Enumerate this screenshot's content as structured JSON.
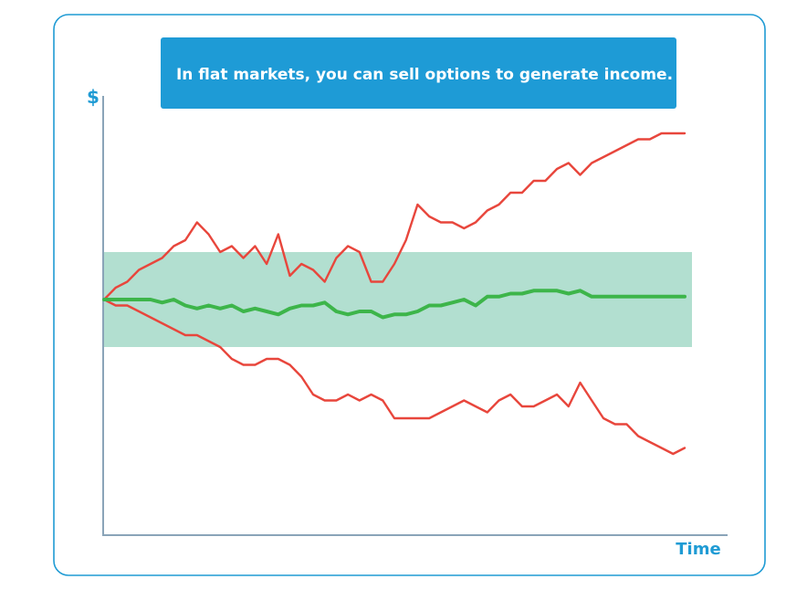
{
  "banner": {
    "text": "In flat markets, you can sell options to generate income."
  },
  "colors": {
    "frame": "#1f9bd4",
    "banner": "#1e9bd6",
    "band": "#b2dfd0",
    "up_line": "#e8463c",
    "down_line": "#e8463c",
    "flat_line": "#3db54a",
    "axis": "#8aa4b8"
  },
  "chart_data": {
    "type": "line",
    "ylabel": "$",
    "xlabel": "Time",
    "xlim": [
      0,
      100
    ],
    "ylim": [
      -40,
      40
    ],
    "band": [
      -8,
      8
    ],
    "grid": false,
    "series": [
      {
        "key": "up",
        "color": "#e8463c",
        "x": [
          0,
          2,
          4,
          6,
          8,
          10,
          12,
          14,
          16,
          18,
          20,
          22,
          24,
          26,
          28,
          30,
          32,
          34,
          36,
          38,
          40,
          42,
          44,
          46,
          48,
          50,
          52,
          54,
          56,
          58,
          60,
          62,
          64,
          66,
          68,
          70,
          72,
          74,
          76,
          78,
          80,
          82,
          84,
          86,
          88,
          90,
          92,
          94,
          96,
          98,
          100
        ],
        "y": [
          0,
          2,
          3,
          5,
          6,
          7,
          9,
          10,
          13,
          11,
          8,
          9,
          7,
          9,
          6,
          11,
          4,
          6,
          5,
          3,
          7,
          9,
          8,
          3,
          3,
          6,
          10,
          16,
          14,
          13,
          13,
          12,
          13,
          15,
          16,
          18,
          18,
          20,
          20,
          22,
          23,
          21,
          23,
          24,
          25,
          26,
          27,
          27,
          28,
          28,
          28
        ]
      },
      {
        "key": "down",
        "color": "#e8463c",
        "x": [
          0,
          2,
          4,
          6,
          8,
          10,
          12,
          14,
          16,
          18,
          20,
          22,
          24,
          26,
          28,
          30,
          32,
          34,
          36,
          38,
          40,
          42,
          44,
          46,
          48,
          50,
          52,
          54,
          56,
          58,
          60,
          62,
          64,
          66,
          68,
          70,
          72,
          74,
          76,
          78,
          80,
          82,
          84,
          86,
          88,
          90,
          92,
          94,
          96,
          98,
          100
        ],
        "y": [
          0,
          -1,
          -1,
          -2,
          -3,
          -4,
          -5,
          -6,
          -6,
          -7,
          -8,
          -10,
          -11,
          -11,
          -10,
          -10,
          -11,
          -13,
          -16,
          -17,
          -17,
          -16,
          -17,
          -16,
          -17,
          -20,
          -20,
          -20,
          -20,
          -19,
          -18,
          -17,
          -18,
          -19,
          -17,
          -16,
          -18,
          -18,
          -17,
          -16,
          -18,
          -14,
          -17,
          -20,
          -21,
          -21,
          -23,
          -24,
          -25,
          -26,
          -25
        ]
      },
      {
        "key": "flat",
        "color": "#3db54a",
        "x": [
          0,
          2,
          4,
          6,
          8,
          10,
          12,
          14,
          16,
          18,
          20,
          22,
          24,
          26,
          28,
          30,
          32,
          34,
          36,
          38,
          40,
          42,
          44,
          46,
          48,
          50,
          52,
          54,
          56,
          58,
          60,
          62,
          64,
          66,
          68,
          70,
          72,
          74,
          76,
          78,
          80,
          82,
          84,
          86,
          88,
          90,
          92,
          94,
          96,
          98,
          100
        ],
        "y": [
          0,
          0,
          0,
          0,
          0,
          -0.5,
          0,
          -1,
          -1.5,
          -1,
          -1.5,
          -1,
          -2,
          -1.5,
          -2,
          -2.5,
          -1.5,
          -1,
          -1,
          -0.5,
          -2,
          -2.5,
          -2,
          -2,
          -3,
          -2.5,
          -2.5,
          -2,
          -1,
          -1,
          -0.5,
          0,
          -1,
          0.5,
          0.5,
          1,
          1,
          1.5,
          1.5,
          1.5,
          1,
          1.5,
          0.5,
          0.5,
          0.5,
          0.5,
          0.5,
          0.5,
          0.5,
          0.5,
          0.5
        ]
      }
    ]
  }
}
